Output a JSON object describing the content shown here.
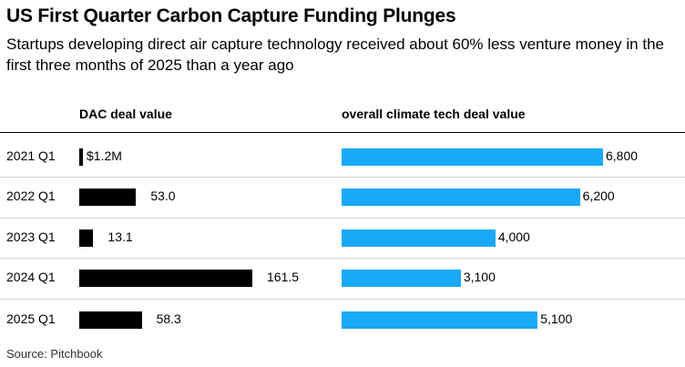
{
  "chart": {
    "title": "US First Quarter Carbon Capture Funding Plunges",
    "subtitle": "Startups developing direct air capture technology received about 60% less venture money in the first three months of 2025 than a year ago",
    "source": "Source: Pitchbook"
  },
  "chart_data": {
    "type": "bar",
    "orientation": "horizontal",
    "categories": [
      "2021 Q1",
      "2022 Q1",
      "2023 Q1",
      "2024 Q1",
      "2025 Q1"
    ],
    "series": [
      {
        "name": "DAC deal value",
        "values": [
          1.2,
          53.0,
          13.1,
          161.5,
          58.3
        ],
        "labels": [
          "$1.2M",
          "53.0",
          "13.1",
          "161.5",
          "58.3"
        ],
        "color": "#000000"
      },
      {
        "name": "overall climate tech deal value",
        "values": [
          6800,
          6200,
          4000,
          3100,
          5100
        ],
        "labels": [
          "6,800",
          "6,200",
          "4,000",
          "3,100",
          "5,100"
        ],
        "color": "#1aa9f7"
      }
    ],
    "grid": false,
    "legend": "column headers"
  }
}
